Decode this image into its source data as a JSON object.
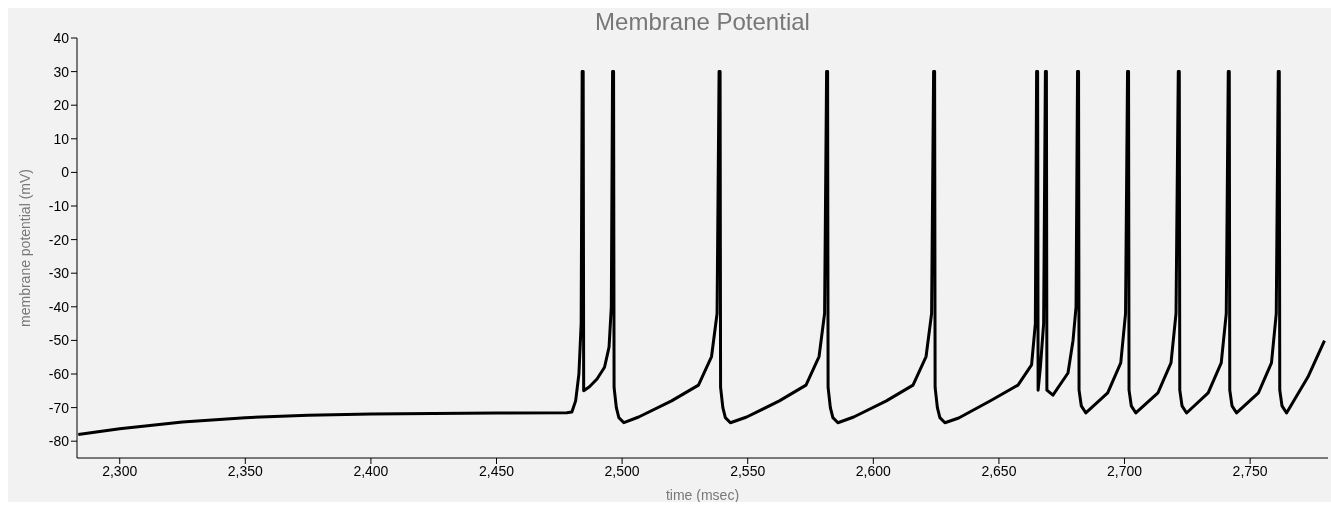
{
  "chart_data": {
    "type": "line",
    "title": "Membrane Potential",
    "xlabel": "time (msec)",
    "ylabel": "membrane potential (mV)",
    "xlim": [
      2283,
      2781
    ],
    "ylim": [
      -85,
      40
    ],
    "xticks": [
      {
        "value": 2300,
        "label": "2,300"
      },
      {
        "value": 2350,
        "label": "2,350"
      },
      {
        "value": 2400,
        "label": "2,400"
      },
      {
        "value": 2450,
        "label": "2,450"
      },
      {
        "value": 2500,
        "label": "2,500"
      },
      {
        "value": 2550,
        "label": "2,550"
      },
      {
        "value": 2600,
        "label": "2,600"
      },
      {
        "value": 2650,
        "label": "2,650"
      },
      {
        "value": 2700,
        "label": "2,700"
      },
      {
        "value": 2750,
        "label": "2,750"
      }
    ],
    "yticks": [
      -80,
      -70,
      -60,
      -50,
      -40,
      -30,
      -20,
      -10,
      0,
      10,
      20,
      30,
      40
    ],
    "series": [
      {
        "color": "#000000",
        "x": [
          2283.5,
          2300,
          2325,
          2350,
          2375,
          2400,
          2450,
          2478,
          2480,
          2481.5,
          2482.8,
          2483.7,
          2484.1,
          2484.5,
          2484.7,
          2487,
          2490,
          2493,
          2494.8,
          2495.7,
          2496.2,
          2496.6,
          2496.8,
          2497.7,
          2498.7,
          2500.7,
          2506.6,
          2519.7,
          2530.4,
          2535.6,
          2537.8,
          2538.6,
          2539,
          2539.2,
          2540.1,
          2541.1,
          2543.1,
          2549.6,
          2562.6,
          2573.2,
          2578.4,
          2580.6,
          2581.4,
          2581.8,
          2582,
          2582.9,
          2583.9,
          2585.9,
          2592.2,
          2605.2,
          2615.8,
          2621,
          2623.2,
          2624,
          2624.4,
          2624.6,
          2625.5,
          2626.5,
          2628.5,
          2634,
          2647,
          2657.6,
          2663,
          2664.5,
          2665,
          2665.4,
          2665.6,
          2666.5,
          2667.8,
          2668.5,
          2668.9,
          2669.1,
          2671.5,
          2677.5,
          2679.5,
          2680.7,
          2681.3,
          2681.7,
          2681.9,
          2682.8,
          2684.6,
          2693.3,
          2698.5,
          2700.4,
          2701.2,
          2701.6,
          2701.8,
          2702.7,
          2704.5,
          2713.3,
          2718.5,
          2720.5,
          2721.4,
          2721.8,
          2722,
          2722.9,
          2724.7,
          2733.3,
          2738.5,
          2740.5,
          2741.3,
          2741.7,
          2741.9,
          2742.8,
          2744.6,
          2753.3,
          2758.5,
          2760.4,
          2761.2,
          2761.6,
          2761.8,
          2762.7,
          2764.5,
          2773,
          2779.6
        ],
        "values": [
          -78,
          -76.3,
          -74.3,
          -73,
          -72.3,
          -71.9,
          -71.6,
          -71.5,
          -71.3,
          -68,
          -60,
          -45,
          30,
          30,
          -65,
          -63.8,
          -61.5,
          -58,
          -52,
          -40,
          30,
          30,
          -64,
          -70,
          -73,
          -74.5,
          -72.8,
          -68,
          -63.3,
          -54.8,
          -42,
          30,
          30,
          -64,
          -70,
          -73,
          -74.5,
          -72.8,
          -68,
          -63.3,
          -54.8,
          -42,
          30,
          30,
          -64,
          -70,
          -73,
          -74.5,
          -72.8,
          -68,
          -63.3,
          -54.8,
          -42,
          30,
          30,
          -64,
          -70,
          -73,
          -74.5,
          -73.1,
          -67.8,
          -63.3,
          -57.3,
          -45,
          30,
          30,
          -64.8,
          -58,
          -45,
          30,
          30,
          -64.8,
          -66.3,
          -59.7,
          -50,
          -40,
          30,
          30,
          -64.8,
          -69.5,
          -71.6,
          -65.6,
          -56.7,
          -42,
          30,
          30,
          -64.8,
          -69.5,
          -71.6,
          -65.6,
          -56.7,
          -42,
          30,
          30,
          -64.8,
          -69.5,
          -71.6,
          -65.6,
          -56.7,
          -42,
          30,
          30,
          -64.8,
          -69.5,
          -71.6,
          -65.6,
          -56.7,
          -42,
          30,
          30,
          -64.8,
          -69.5,
          -71.6,
          -60.9,
          -50.1
        ]
      }
    ]
  }
}
